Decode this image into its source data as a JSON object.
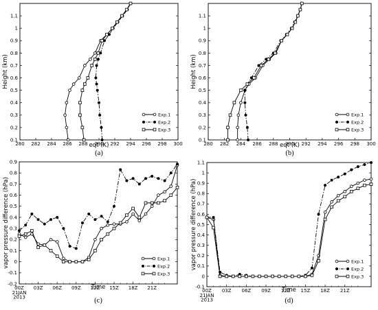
{
  "figure": {
    "background": "#ffffff",
    "ink": "#000000"
  },
  "chart_data": [
    {
      "id": "a",
      "caption": "(a)",
      "type": "line",
      "xlabel": "eqt  (K)",
      "ylabel": "Height (km)",
      "xlim": [
        280,
        300
      ],
      "ylim": [
        0.1,
        1.2
      ],
      "xticks": [
        "280",
        "282",
        "284",
        "286",
        "288",
        "290",
        "292",
        "294",
        "296",
        "298",
        "300"
      ],
      "yticks": [
        "0.1",
        "0.2",
        "0.3",
        "0.4",
        "0.5",
        "0.6",
        "0.7",
        "0.8",
        "0.9",
        "1",
        "1.1"
      ],
      "legend": {
        "placement": "bottom-right",
        "entries": [
          "Exp.1",
          "Exp.2",
          "Exp.3"
        ]
      },
      "series": [
        {
          "name": "Exp.1",
          "marker": "circle",
          "dash": "solid",
          "x": [
            286.1,
            285.9,
            285.7,
            285.9,
            286.3,
            286.8,
            287.5,
            288.2,
            288.9,
            289.5,
            290.2,
            291.0,
            291.7,
            292.3,
            292.9,
            293.5,
            294.0
          ],
          "y": [
            0.1,
            0.2,
            0.3,
            0.4,
            0.5,
            0.55,
            0.6,
            0.7,
            0.75,
            0.8,
            0.9,
            0.95,
            1.0,
            1.05,
            1.1,
            1.15,
            1.2
          ]
        },
        {
          "name": "Exp.2",
          "marker": "filled-circle",
          "dash": "dashdot",
          "x": [
            290.4,
            290.3,
            290.1,
            290.0,
            289.8,
            289.7,
            289.6,
            289.7,
            289.9,
            290.2,
            290.7,
            291.3,
            291.8,
            292.4,
            293.0,
            293.6,
            294.0
          ],
          "y": [
            0.1,
            0.2,
            0.3,
            0.4,
            0.5,
            0.55,
            0.6,
            0.7,
            0.75,
            0.8,
            0.9,
            0.95,
            1.0,
            1.05,
            1.1,
            1.15,
            1.2
          ]
        },
        {
          "name": "Exp.3",
          "marker": "square",
          "dash": "solid",
          "x": [
            288.1,
            287.9,
            287.6,
            287.6,
            287.9,
            288.2,
            288.6,
            289.1,
            289.5,
            289.9,
            290.4,
            291.0,
            291.7,
            292.3,
            292.9,
            293.5,
            294.0
          ],
          "y": [
            0.1,
            0.2,
            0.3,
            0.4,
            0.5,
            0.55,
            0.6,
            0.7,
            0.75,
            0.8,
            0.9,
            0.95,
            1.0,
            1.05,
            1.1,
            1.15,
            1.2
          ]
        }
      ]
    },
    {
      "id": "b",
      "caption": "(b)",
      "type": "line",
      "xlabel": "eqt  (K)",
      "ylabel": "Height (km)",
      "xlim": [
        280,
        300
      ],
      "ylim": [
        0.1,
        1.2
      ],
      "xticks": [
        "280",
        "282",
        "284",
        "286",
        "288",
        "290",
        "292",
        "294",
        "296",
        "298",
        "300"
      ],
      "yticks": [
        "0.1",
        "0.2",
        "0.3",
        "0.4",
        "0.5",
        "0.6",
        "0.7",
        "0.8",
        "0.9",
        "1",
        "1.1"
      ],
      "legend": {
        "placement": "bottom-right",
        "entries": [
          "Exp.1",
          "Exp.2",
          "Exp.3"
        ]
      },
      "series": [
        {
          "name": "Exp.1",
          "marker": "circle",
          "dash": "solid",
          "x": [
            283.6,
            283.6,
            283.7,
            284.0,
            284.5,
            285.0,
            285.8,
            286.7,
            287.5,
            288.3,
            289.0,
            289.7,
            290.3,
            290.7,
            291.0,
            291.3,
            291.5
          ],
          "y": [
            0.1,
            0.2,
            0.3,
            0.4,
            0.5,
            0.55,
            0.6,
            0.7,
            0.75,
            0.8,
            0.9,
            0.95,
            1.0,
            1.05,
            1.1,
            1.15,
            1.2
          ]
        },
        {
          "name": "Exp.2",
          "marker": "filled-circle",
          "dash": "dashdot",
          "x": [
            284.9,
            284.8,
            284.6,
            284.5,
            284.5,
            284.8,
            285.3,
            286.2,
            287.1,
            288.0,
            288.9,
            289.6,
            290.2,
            290.6,
            291.0,
            291.3,
            291.5
          ],
          "y": [
            0.1,
            0.2,
            0.3,
            0.4,
            0.5,
            0.55,
            0.6,
            0.7,
            0.75,
            0.8,
            0.9,
            0.95,
            1.0,
            1.05,
            1.1,
            1.15,
            1.2
          ]
        },
        {
          "name": "Exp.3",
          "marker": "square",
          "dash": "solid",
          "x": [
            282.4,
            282.4,
            282.7,
            283.2,
            284.0,
            284.8,
            285.6,
            286.5,
            287.4,
            288.2,
            289.0,
            289.7,
            290.3,
            290.7,
            291.0,
            291.3,
            291.5
          ],
          "y": [
            0.1,
            0.2,
            0.3,
            0.4,
            0.5,
            0.55,
            0.6,
            0.7,
            0.75,
            0.8,
            0.9,
            0.95,
            1.0,
            1.05,
            1.1,
            1.15,
            1.2
          ]
        }
      ]
    },
    {
      "id": "c",
      "caption": "(c)",
      "type": "line",
      "xlabel": "Time",
      "ylabel": "vapor pressure difference (hPa)",
      "xlim": [
        0,
        25
      ],
      "ylim": [
        -0.2,
        0.9
      ],
      "xticks": [
        {
          "value": 0,
          "label": "00Z"
        },
        {
          "value": 3,
          "label": "03Z"
        },
        {
          "value": 6,
          "label": "06Z"
        },
        {
          "value": 9,
          "label": "09Z"
        },
        {
          "value": 12,
          "label": "12Z"
        },
        {
          "value": 15,
          "label": "15Z"
        },
        {
          "value": 18,
          "label": "18Z"
        },
        {
          "value": 21,
          "label": "21Z"
        }
      ],
      "xtick_sublabels": [
        "21JAN",
        "2013"
      ],
      "yticks": [
        "-0.2",
        "-0.1",
        "0",
        "0.1",
        "0.2",
        "0.3",
        "0.4",
        "0.5",
        "0.6",
        "0.7",
        "0.8",
        "0.9"
      ],
      "legend": {
        "placement": "bottom-right",
        "entries": [
          "Exp.1",
          "Exp.2",
          "Exp.3"
        ]
      },
      "series": [
        {
          "name": "Exp.1",
          "marker": "circle",
          "dash": "solid",
          "x": [
            0,
            1,
            2,
            3,
            4,
            5,
            6,
            7,
            8,
            9,
            10,
            11,
            12,
            13,
            14,
            15,
            16,
            17,
            18,
            19,
            20,
            21,
            22,
            23,
            24,
            25
          ],
          "y": [
            0.25,
            0.22,
            0.25,
            0.16,
            0.15,
            0.2,
            0.18,
            0.03,
            0.0,
            0.0,
            0.0,
            0.04,
            0.2,
            0.3,
            0.33,
            0.34,
            0.34,
            0.36,
            0.43,
            0.37,
            0.43,
            0.5,
            0.6,
            0.63,
            0.68,
            0.87
          ]
        },
        {
          "name": "Exp.2",
          "marker": "filled-circle",
          "dash": "dashdot",
          "x": [
            0,
            1,
            2,
            3,
            4,
            5,
            6,
            7,
            8,
            9,
            10,
            11,
            12,
            13,
            14,
            15,
            16,
            17,
            18,
            19,
            20,
            21,
            22,
            23,
            24,
            25
          ],
          "y": [
            0.28,
            0.33,
            0.43,
            0.38,
            0.34,
            0.38,
            0.4,
            0.3,
            0.14,
            0.12,
            0.35,
            0.43,
            0.38,
            0.41,
            0.36,
            0.5,
            0.83,
            0.73,
            0.75,
            0.7,
            0.75,
            0.77,
            0.75,
            0.73,
            0.8,
            0.88
          ]
        },
        {
          "name": "Exp.3",
          "marker": "square",
          "dash": "solid",
          "x": [
            0,
            1,
            2,
            3,
            4,
            5,
            6,
            7,
            8,
            9,
            10,
            11,
            12,
            13,
            14,
            15,
            16,
            17,
            18,
            19,
            20,
            21,
            22,
            23,
            24,
            25
          ],
          "y": [
            0.23,
            0.25,
            0.28,
            0.13,
            0.15,
            0.1,
            0.05,
            0.0,
            0.0,
            0.0,
            0.0,
            0.02,
            0.1,
            0.2,
            0.25,
            0.3,
            0.35,
            0.42,
            0.48,
            0.4,
            0.53,
            0.53,
            0.53,
            0.55,
            0.6,
            0.67
          ]
        }
      ]
    },
    {
      "id": "d",
      "caption": "(d)",
      "type": "line",
      "xlabel": "Time",
      "ylabel": "vapor pressure difference (hPa)",
      "xlim": [
        0,
        25
      ],
      "ylim": [
        -0.1,
        1.1
      ],
      "xticks": [
        {
          "value": 0,
          "label": "00Z"
        },
        {
          "value": 3,
          "label": "03Z"
        },
        {
          "value": 6,
          "label": "06Z"
        },
        {
          "value": 9,
          "label": "09Z"
        },
        {
          "value": 12,
          "label": "12Z"
        },
        {
          "value": 15,
          "label": "15Z"
        },
        {
          "value": 18,
          "label": "18Z"
        },
        {
          "value": 21,
          "label": "21Z"
        }
      ],
      "xtick_sublabels": [
        "21JAN",
        "2013"
      ],
      "yticks": [
        "-0.1",
        "0",
        "0.1",
        "0.2",
        "0.3",
        "0.4",
        "0.5",
        "0.6",
        "0.7",
        "0.8",
        "0.9",
        "1",
        "1.1"
      ],
      "legend": {
        "placement": "bottom-right",
        "entries": [
          "Exp.1",
          "Exp.2",
          "Exp.3"
        ]
      },
      "series": [
        {
          "name": "Exp.1",
          "marker": "circle",
          "dash": "solid",
          "x": [
            0,
            1,
            2,
            3,
            4,
            5,
            6,
            7,
            8,
            9,
            10,
            11,
            12,
            13,
            14,
            15,
            16,
            17,
            18,
            19,
            20,
            21,
            22,
            23,
            24,
            25
          ],
          "y": [
            0.57,
            0.55,
            0.01,
            0.0,
            0.0,
            0.0,
            0.0,
            0.0,
            0.0,
            0.0,
            0.0,
            0.0,
            0.0,
            0.0,
            0.0,
            0.0,
            0.02,
            0.2,
            0.62,
            0.72,
            0.78,
            0.82,
            0.87,
            0.9,
            0.93,
            0.94
          ]
        },
        {
          "name": "Exp.2",
          "marker": "filled-circle",
          "dash": "dashdot",
          "x": [
            0,
            1,
            2,
            3,
            4,
            5,
            6,
            7,
            8,
            9,
            10,
            11,
            12,
            13,
            14,
            15,
            16,
            17,
            18,
            19,
            20,
            21,
            22,
            23,
            24,
            25
          ],
          "y": [
            0.57,
            0.57,
            0.04,
            0.01,
            0.0,
            0.02,
            0.01,
            0.0,
            0.0,
            0.0,
            0.0,
            0.0,
            0.0,
            0.0,
            0.0,
            0.01,
            0.08,
            0.6,
            0.88,
            0.93,
            0.96,
            0.99,
            1.03,
            1.06,
            1.08,
            1.1
          ]
        },
        {
          "name": "Exp.3",
          "marker": "square",
          "dash": "solid",
          "x": [
            0,
            1,
            2,
            3,
            4,
            5,
            6,
            7,
            8,
            9,
            10,
            11,
            12,
            13,
            14,
            15,
            16,
            17,
            18,
            19,
            20,
            21,
            22,
            23,
            24,
            25
          ],
          "y": [
            0.57,
            0.47,
            0.0,
            0.0,
            0.0,
            0.0,
            0.0,
            0.0,
            0.0,
            0.0,
            0.0,
            0.0,
            0.0,
            0.0,
            0.0,
            0.0,
            0.01,
            0.15,
            0.55,
            0.67,
            0.73,
            0.77,
            0.82,
            0.85,
            0.88,
            0.89
          ]
        }
      ]
    }
  ]
}
